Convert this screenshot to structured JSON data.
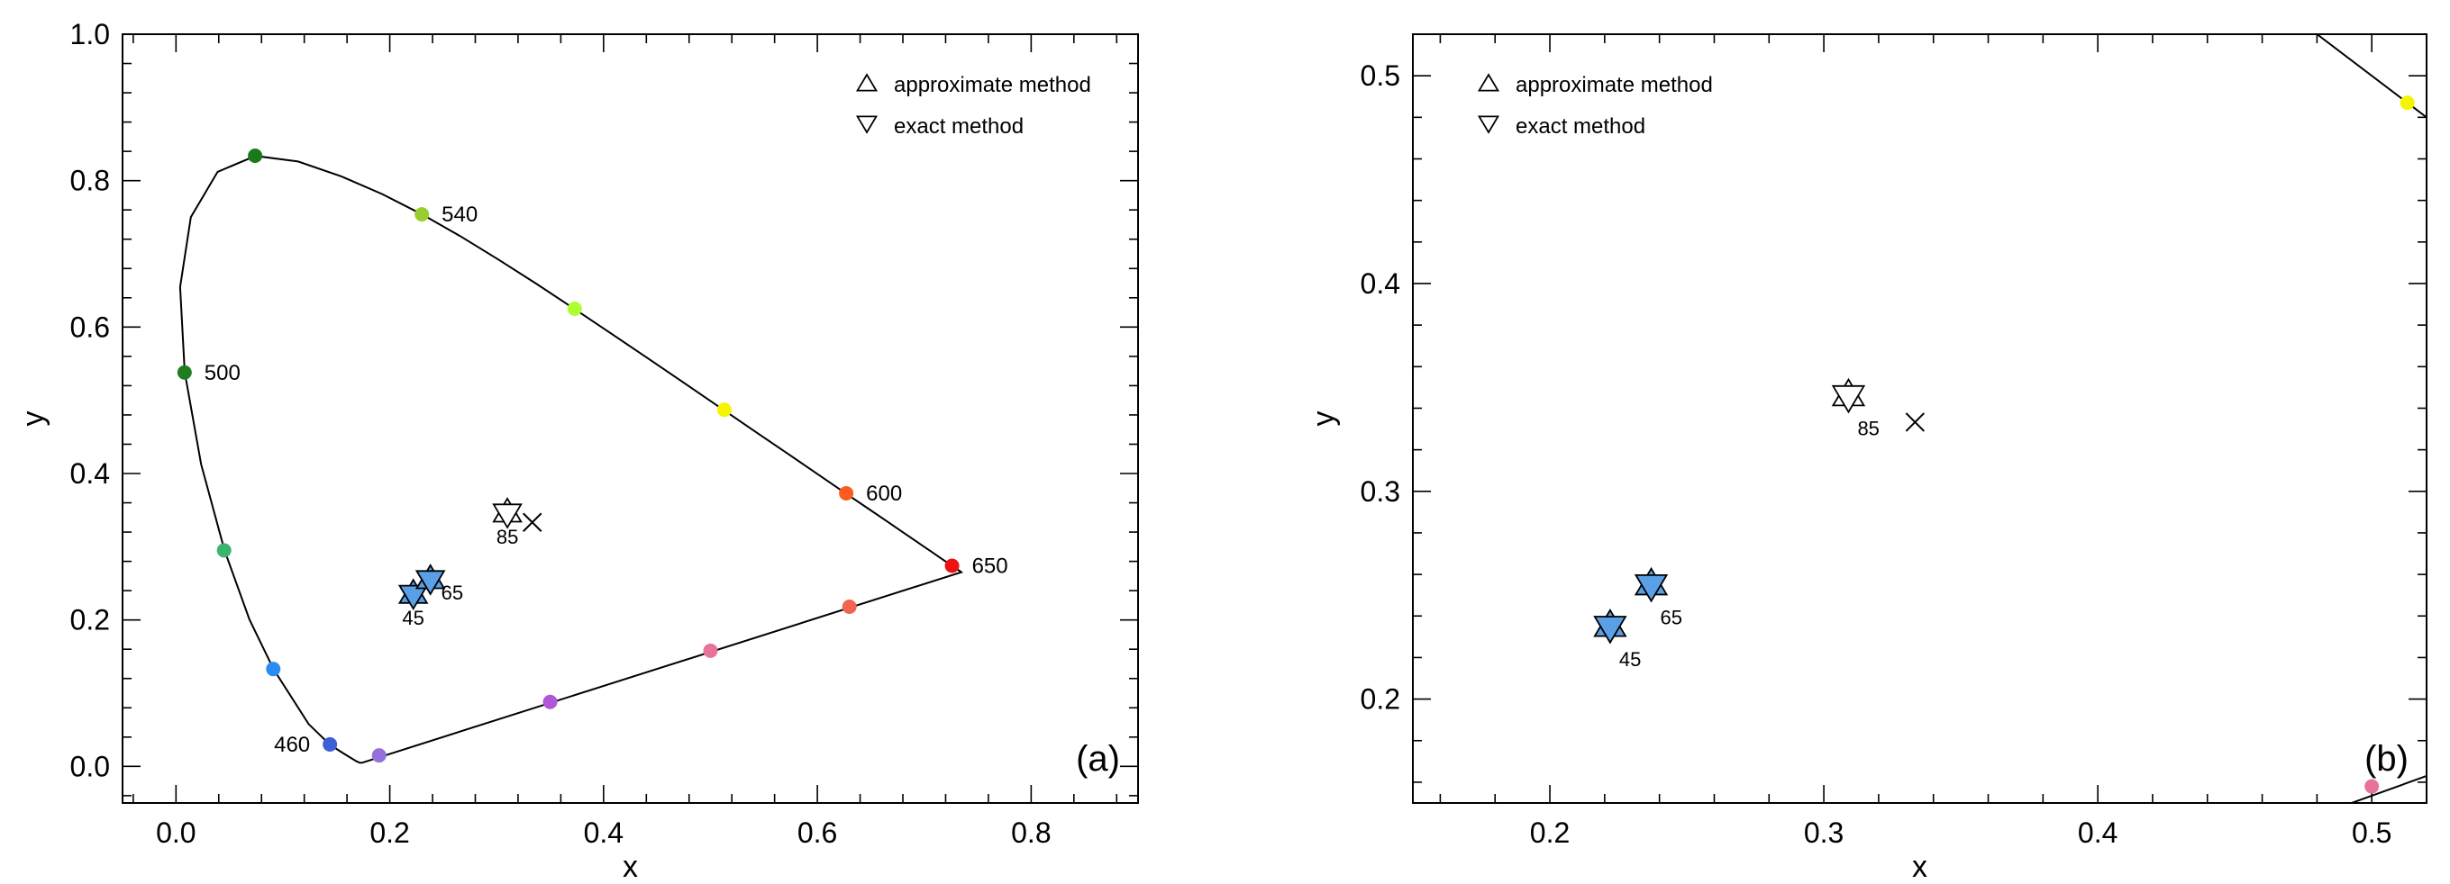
{
  "chart_data": [
    {
      "type": "scatter",
      "panel_label": "(a)",
      "xlabel": "x",
      "ylabel": "y",
      "xlim": [
        -0.05,
        0.9
      ],
      "ylim": [
        -0.05,
        1.0
      ],
      "x_ticks": [
        "0.0",
        "0.2",
        "0.4",
        "0.6",
        "0.8"
      ],
      "x_tick_values": [
        0.0,
        0.2,
        0.4,
        0.6,
        0.8
      ],
      "y_ticks": [
        "0.0",
        "0.2",
        "0.4",
        "0.6",
        "0.8",
        "1.0"
      ],
      "y_tick_values": [
        0.0,
        0.2,
        0.4,
        0.6,
        0.8,
        1.0
      ],
      "legend": {
        "placement": "top-right",
        "entries": [
          {
            "marker": "triangle-up",
            "label": "approximate method"
          },
          {
            "marker": "triangle-down",
            "label": "exact method"
          }
        ]
      },
      "locus_points": [
        {
          "x": 0.1741,
          "y": 0.005
        },
        {
          "x": 0.1738,
          "y": 0.0049
        },
        {
          "x": 0.1721,
          "y": 0.0048
        },
        {
          "x": 0.1689,
          "y": 0.0069
        },
        {
          "x": 0.1644,
          "y": 0.0109
        },
        {
          "x": 0.1566,
          "y": 0.0177
        },
        {
          "x": 0.144,
          "y": 0.0297
        },
        {
          "x": 0.1241,
          "y": 0.0578
        },
        {
          "x": 0.0913,
          "y": 0.1327
        },
        {
          "x": 0.0687,
          "y": 0.2007
        },
        {
          "x": 0.0454,
          "y": 0.295
        },
        {
          "x": 0.0235,
          "y": 0.4127
        },
        {
          "x": 0.0082,
          "y": 0.5384
        },
        {
          "x": 0.0039,
          "y": 0.6548
        },
        {
          "x": 0.0139,
          "y": 0.7502
        },
        {
          "x": 0.0389,
          "y": 0.812
        },
        {
          "x": 0.0743,
          "y": 0.8338
        },
        {
          "x": 0.1142,
          "y": 0.8262
        },
        {
          "x": 0.1547,
          "y": 0.8059
        },
        {
          "x": 0.1929,
          "y": 0.7816
        },
        {
          "x": 0.2296,
          "y": 0.7543
        },
        {
          "x": 0.2658,
          "y": 0.7243
        },
        {
          "x": 0.3016,
          "y": 0.6923
        },
        {
          "x": 0.3373,
          "y": 0.6589
        },
        {
          "x": 0.3731,
          "y": 0.6245
        },
        {
          "x": 0.4087,
          "y": 0.5896
        },
        {
          "x": 0.4441,
          "y": 0.5547
        },
        {
          "x": 0.4788,
          "y": 0.5202
        },
        {
          "x": 0.5125,
          "y": 0.4866
        },
        {
          "x": 0.5448,
          "y": 0.4544
        },
        {
          "x": 0.5752,
          "y": 0.4242
        },
        {
          "x": 0.6029,
          "y": 0.3965
        },
        {
          "x": 0.627,
          "y": 0.3725
        },
        {
          "x": 0.6482,
          "y": 0.3514
        },
        {
          "x": 0.6658,
          "y": 0.334
        },
        {
          "x": 0.6801,
          "y": 0.3197
        },
        {
          "x": 0.6915,
          "y": 0.3083
        },
        {
          "x": 0.7006,
          "y": 0.2993
        },
        {
          "x": 0.7079,
          "y": 0.292
        },
        {
          "x": 0.714,
          "y": 0.2859
        },
        {
          "x": 0.719,
          "y": 0.2809
        },
        {
          "x": 0.723,
          "y": 0.277
        },
        {
          "x": 0.726,
          "y": 0.274
        },
        {
          "x": 0.7283,
          "y": 0.2717
        },
        {
          "x": 0.73,
          "y": 0.27
        },
        {
          "x": 0.7311,
          "y": 0.2689
        },
        {
          "x": 0.732,
          "y": 0.268
        },
        {
          "x": 0.7327,
          "y": 0.2673
        },
        {
          "x": 0.7334,
          "y": 0.2666
        },
        {
          "x": 0.734,
          "y": 0.266
        },
        {
          "x": 0.7344,
          "y": 0.2656
        },
        {
          "x": 0.7347,
          "y": 0.2653
        }
      ],
      "locus_dots": [
        {
          "x": 0.144,
          "y": 0.03,
          "color": "#3d5fd6"
        },
        {
          "x": 0.091,
          "y": 0.133,
          "color": "#2a8cf0"
        },
        {
          "x": 0.045,
          "y": 0.295,
          "color": "#3cb371"
        },
        {
          "x": 0.008,
          "y": 0.538,
          "color": "#1f7d1f"
        },
        {
          "x": 0.074,
          "y": 0.834,
          "color": "#1a7a1a"
        },
        {
          "x": 0.23,
          "y": 0.754,
          "color": "#9acd32"
        },
        {
          "x": 0.373,
          "y": 0.625,
          "color": "#adff2f"
        },
        {
          "x": 0.513,
          "y": 0.487,
          "color": "#f5f500"
        },
        {
          "x": 0.627,
          "y": 0.373,
          "color": "#ff5a1f"
        },
        {
          "x": 0.726,
          "y": 0.274,
          "color": "#ee1111"
        },
        {
          "x": 0.63,
          "y": 0.218,
          "color": "#f26450"
        },
        {
          "x": 0.5,
          "y": 0.158,
          "color": "#e8739a"
        },
        {
          "x": 0.35,
          "y": 0.088,
          "color": "#b056d6"
        },
        {
          "x": 0.19,
          "y": 0.015,
          "color": "#9370db"
        }
      ],
      "wavelength_labels": [
        {
          "text": "460",
          "x": 0.144,
          "y": 0.03,
          "side": "left"
        },
        {
          "text": "500",
          "x": 0.008,
          "y": 0.538,
          "side": "right"
        },
        {
          "text": "540",
          "x": 0.23,
          "y": 0.754,
          "side": "right"
        },
        {
          "text": "600",
          "x": 0.627,
          "y": 0.373,
          "side": "right"
        },
        {
          "text": "650",
          "x": 0.726,
          "y": 0.274,
          "side": "right"
        }
      ],
      "white_point": {
        "x": 0.3333,
        "y": 0.3333,
        "marker": "x"
      },
      "samples": [
        {
          "label": "45",
          "x": 0.222,
          "y": 0.235,
          "fill": "#5aa0e6"
        },
        {
          "label": "65",
          "x": 0.238,
          "y": 0.255,
          "fill": "#5aa0e6"
        },
        {
          "label": "85",
          "x": 0.31,
          "y": 0.346,
          "fill": "#ffffff"
        }
      ]
    },
    {
      "type": "scatter",
      "panel_label": "(b)",
      "xlabel": "x",
      "ylabel": "y",
      "xlim": [
        0.15,
        0.52
      ],
      "ylim": [
        0.15,
        0.52
      ],
      "x_ticks": [
        "0.2",
        "0.3",
        "0.4",
        "0.5"
      ],
      "x_tick_values": [
        0.2,
        0.3,
        0.4,
        0.5
      ],
      "y_ticks": [
        "0.2",
        "0.3",
        "0.4",
        "0.5"
      ],
      "y_tick_values": [
        0.2,
        0.3,
        0.4,
        0.5
      ],
      "legend": {
        "placement": "top-left",
        "entries": [
          {
            "marker": "triangle-up",
            "label": "approximate method"
          },
          {
            "marker": "triangle-down",
            "label": "exact method"
          }
        ]
      },
      "locus_segments": [
        [
          {
            "x": 0.48,
            "y": 0.52
          },
          {
            "x": 0.52,
            "y": 0.48
          }
        ],
        [
          {
            "x": 0.48,
            "y": 0.144
          },
          {
            "x": 0.52,
            "y": 0.163
          }
        ]
      ],
      "locus_dots": [
        {
          "x": 0.513,
          "y": 0.487,
          "color": "#f5f500"
        },
        {
          "x": 0.5,
          "y": 0.158,
          "color": "#e8739a"
        }
      ],
      "white_point": {
        "x": 0.3333,
        "y": 0.3333,
        "marker": "x"
      },
      "samples": [
        {
          "label": "45",
          "x": 0.222,
          "y": 0.235,
          "fill": "#5aa0e6"
        },
        {
          "label": "65",
          "x": 0.237,
          "y": 0.255,
          "fill": "#5aa0e6"
        },
        {
          "label": "85",
          "x": 0.309,
          "y": 0.346,
          "fill": "#ffffff"
        }
      ]
    }
  ]
}
